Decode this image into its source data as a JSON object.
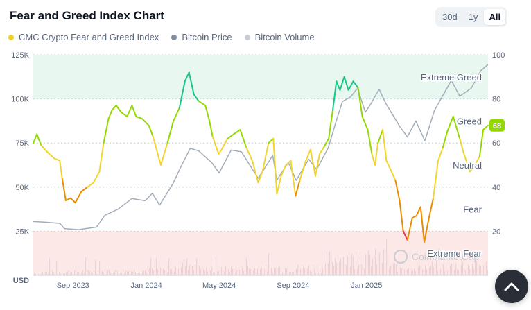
{
  "header": {
    "title": "Fear and Greed Index Chart",
    "ranges": [
      "30d",
      "1y",
      "All"
    ],
    "active_range": "All"
  },
  "legend": [
    {
      "label": "CMC Crypto Fear and Greed Index",
      "color": "#f3d42f"
    },
    {
      "label": "Bitcoin Price",
      "color": "#7f8ba1"
    },
    {
      "label": "Bitcoin Volume",
      "color": "#c9ced8"
    }
  ],
  "colors": {
    "extreme_greed": "#16c784",
    "greed": "#93d900",
    "neutral": "#f3d42f",
    "fear": "#ea8c00",
    "extreme_fear": "#ea3943",
    "greed_band": "#e8f8f1",
    "fear_band": "#fde8e8",
    "price_line": "#a3acb9",
    "volume": "#e6c9d8",
    "current_badge": "#93d900"
  },
  "watermark": "CoinMarketCap",
  "chart_data": {
    "type": "line",
    "x_ticks": [
      "Sep 2023",
      "Jan 2024",
      "May 2024",
      "Sep 2024",
      "Jan 2025"
    ],
    "x_tick_dates": [
      "2023-09-01",
      "2024-01-01",
      "2024-05-01",
      "2024-09-01",
      "2025-01-01"
    ],
    "x_range": [
      "2023-06-27",
      "2025-07-22"
    ],
    "y_left": {
      "unit": "USD",
      "ticks": [
        "25K",
        "50K",
        "75K",
        "100K",
        "125K"
      ],
      "tick_values": [
        25000,
        50000,
        75000,
        100000,
        125000
      ],
      "range": [
        0,
        125000
      ]
    },
    "y_right": {
      "ticks": [
        "20",
        "40",
        "60",
        "80",
        "100"
      ],
      "tick_values": [
        20,
        40,
        60,
        80,
        100
      ],
      "range": [
        0,
        100
      ]
    },
    "zones": [
      {
        "label": "Extreme Greed",
        "value": 90
      },
      {
        "label": "Greed",
        "value": 70
      },
      {
        "label": "Neutral",
        "value": 50
      },
      {
        "label": "Fear",
        "value": 30
      },
      {
        "label": "Extreme Fear",
        "value": 10
      }
    ],
    "current_value": "68",
    "series": [
      {
        "name": "CMC Crypto Fear and Greed Index",
        "points": [
          [
            "2023-06-27",
            60
          ],
          [
            "2023-07-03",
            64
          ],
          [
            "2023-07-10",
            59
          ],
          [
            "2023-07-20",
            56
          ],
          [
            "2023-08-01",
            53
          ],
          [
            "2023-08-10",
            52
          ],
          [
            "2023-08-14",
            44
          ],
          [
            "2023-08-20",
            34
          ],
          [
            "2023-08-28",
            35
          ],
          [
            "2023-09-05",
            33
          ],
          [
            "2023-09-15",
            38
          ],
          [
            "2023-09-25",
            40
          ],
          [
            "2023-10-05",
            42
          ],
          [
            "2023-10-15",
            47
          ],
          [
            "2023-10-22",
            60
          ],
          [
            "2023-10-30",
            71
          ],
          [
            "2023-11-05",
            75
          ],
          [
            "2023-11-12",
            77
          ],
          [
            "2023-11-20",
            74
          ],
          [
            "2023-11-30",
            72
          ],
          [
            "2023-12-08",
            77
          ],
          [
            "2023-12-15",
            72
          ],
          [
            "2023-12-25",
            71
          ],
          [
            "2024-01-05",
            68
          ],
          [
            "2024-01-12",
            63
          ],
          [
            "2024-01-20",
            55
          ],
          [
            "2024-01-25",
            50
          ],
          [
            "2024-02-05",
            60
          ],
          [
            "2024-02-15",
            70
          ],
          [
            "2024-02-25",
            76
          ],
          [
            "2024-03-05",
            88
          ],
          [
            "2024-03-12",
            92
          ],
          [
            "2024-03-20",
            82
          ],
          [
            "2024-03-28",
            79
          ],
          [
            "2024-04-08",
            77
          ],
          [
            "2024-04-15",
            70
          ],
          [
            "2024-04-20",
            63
          ],
          [
            "2024-04-30",
            55
          ],
          [
            "2024-05-05",
            57
          ],
          [
            "2024-05-15",
            62
          ],
          [
            "2024-05-25",
            64
          ],
          [
            "2024-06-05",
            66
          ],
          [
            "2024-06-15",
            58
          ],
          [
            "2024-06-25",
            52
          ],
          [
            "2024-07-05",
            42
          ],
          [
            "2024-07-12",
            47
          ],
          [
            "2024-07-22",
            60
          ],
          [
            "2024-07-30",
            62
          ],
          [
            "2024-08-05",
            37
          ],
          [
            "2024-08-12",
            45
          ],
          [
            "2024-08-20",
            50
          ],
          [
            "2024-08-28",
            52
          ],
          [
            "2024-09-05",
            36
          ],
          [
            "2024-09-12",
            43
          ],
          [
            "2024-09-22",
            52
          ],
          [
            "2024-09-30",
            57
          ],
          [
            "2024-10-08",
            45
          ],
          [
            "2024-10-15",
            55
          ],
          [
            "2024-10-22",
            58
          ],
          [
            "2024-10-30",
            62
          ],
          [
            "2024-11-06",
            75
          ],
          [
            "2024-11-12",
            88
          ],
          [
            "2024-11-18",
            84
          ],
          [
            "2024-11-25",
            90
          ],
          [
            "2024-12-02",
            84
          ],
          [
            "2024-12-10",
            88
          ],
          [
            "2024-12-18",
            85
          ],
          [
            "2024-12-25",
            72
          ],
          [
            "2025-01-03",
            66
          ],
          [
            "2025-01-10",
            55
          ],
          [
            "2025-01-15",
            50
          ],
          [
            "2025-01-20",
            60
          ],
          [
            "2025-01-28",
            66
          ],
          [
            "2025-02-03",
            52
          ],
          [
            "2025-02-10",
            48
          ],
          [
            "2025-02-18",
            43
          ],
          [
            "2025-02-25",
            34
          ],
          [
            "2025-03-03",
            20
          ],
          [
            "2025-03-10",
            16
          ],
          [
            "2025-03-18",
            26
          ],
          [
            "2025-03-25",
            27
          ],
          [
            "2025-04-01",
            31
          ],
          [
            "2025-04-07",
            15
          ],
          [
            "2025-04-14",
            25
          ],
          [
            "2025-04-22",
            35
          ],
          [
            "2025-04-30",
            52
          ],
          [
            "2025-05-08",
            58
          ],
          [
            "2025-05-15",
            65
          ],
          [
            "2025-05-25",
            72
          ],
          [
            "2025-06-05",
            62
          ],
          [
            "2025-06-12",
            55
          ],
          [
            "2025-06-22",
            47
          ],
          [
            "2025-06-30",
            50
          ],
          [
            "2025-07-08",
            54
          ],
          [
            "2025-07-14",
            66
          ],
          [
            "2025-07-22",
            68
          ]
        ]
      },
      {
        "name": "Bitcoin Price",
        "points": [
          [
            "2023-06-27",
            30500
          ],
          [
            "2023-07-15",
            30200
          ],
          [
            "2023-08-10",
            29500
          ],
          [
            "2023-08-18",
            26500
          ],
          [
            "2023-09-10",
            25900
          ],
          [
            "2023-10-10",
            27300
          ],
          [
            "2023-10-24",
            34000
          ],
          [
            "2023-11-15",
            37500
          ],
          [
            "2023-12-08",
            43500
          ],
          [
            "2023-12-30",
            42300
          ],
          [
            "2024-01-11",
            46500
          ],
          [
            "2024-01-23",
            39800
          ],
          [
            "2024-02-14",
            51800
          ],
          [
            "2024-02-28",
            62000
          ],
          [
            "2024-03-14",
            72000
          ],
          [
            "2024-03-28",
            70500
          ],
          [
            "2024-04-19",
            63800
          ],
          [
            "2024-05-01",
            58000
          ],
          [
            "2024-05-21",
            71000
          ],
          [
            "2024-06-07",
            70000
          ],
          [
            "2024-07-05",
            55000
          ],
          [
            "2024-07-29",
            68000
          ],
          [
            "2024-08-05",
            54000
          ],
          [
            "2024-08-24",
            64000
          ],
          [
            "2024-09-06",
            53800
          ],
          [
            "2024-09-27",
            65800
          ],
          [
            "2024-10-10",
            60000
          ],
          [
            "2024-10-29",
            72000
          ],
          [
            "2024-11-13",
            89000
          ],
          [
            "2024-11-22",
            98500
          ],
          [
            "2024-12-05",
            101000
          ],
          [
            "2024-12-17",
            106000
          ],
          [
            "2024-12-30",
            92500
          ],
          [
            "2025-01-07",
            96500
          ],
          [
            "2025-01-22",
            105500
          ],
          [
            "2025-02-02",
            97500
          ],
          [
            "2025-02-26",
            84000
          ],
          [
            "2025-03-10",
            78500
          ],
          [
            "2025-03-24",
            87500
          ],
          [
            "2025-04-08",
            76300
          ],
          [
            "2025-04-24",
            93500
          ],
          [
            "2025-05-08",
            102000
          ],
          [
            "2025-05-22",
            110500
          ],
          [
            "2025-06-05",
            101500
          ],
          [
            "2025-06-24",
            106000
          ],
          [
            "2025-07-10",
            116000
          ],
          [
            "2025-07-22",
            119500
          ]
        ]
      }
    ]
  }
}
